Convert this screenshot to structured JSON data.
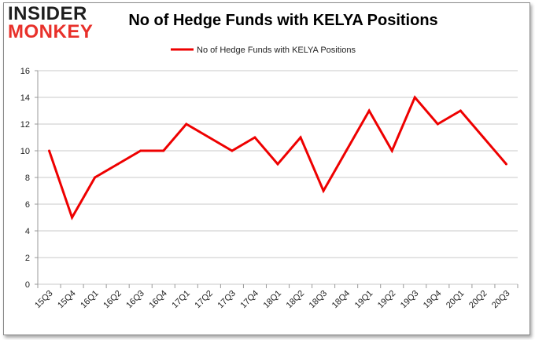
{
  "logo": {
    "top": "INSIDER",
    "bottom": "MONKEY"
  },
  "chart_data": {
    "type": "line",
    "title": "No of Hedge Funds with KELYA Positions",
    "xlabel": "",
    "ylabel": "",
    "ylim": [
      0,
      16
    ],
    "yticks": [
      0,
      2,
      4,
      6,
      8,
      10,
      12,
      14,
      16
    ],
    "grid": true,
    "legend": "top-center",
    "categories": [
      "15Q3",
      "15Q4",
      "16Q1",
      "16Q2",
      "16Q3",
      "16Q4",
      "17Q1",
      "17Q2",
      "17Q3",
      "17Q4",
      "18Q1",
      "18Q2",
      "18Q3",
      "18Q4",
      "19Q1",
      "19Q2",
      "19Q3",
      "19Q4",
      "20Q1",
      "20Q2",
      "20Q3"
    ],
    "series": [
      {
        "name": "No of Hedge Funds with KELYA Positions",
        "color": "#ee0000",
        "values": [
          10,
          5,
          8,
          9,
          10,
          10,
          12,
          11,
          10,
          11,
          9,
          11,
          7,
          10,
          13,
          10,
          14,
          12,
          13,
          11,
          9
        ]
      }
    ]
  }
}
